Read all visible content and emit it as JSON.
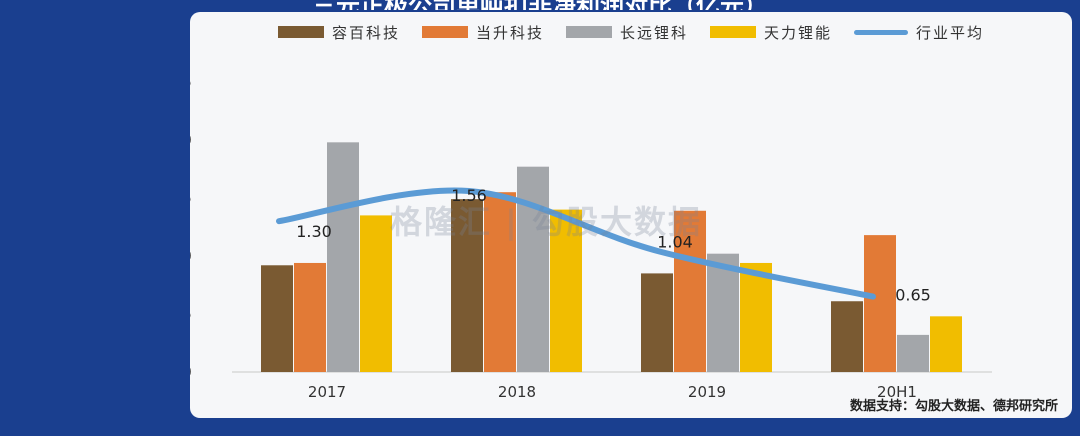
{
  "header": {
    "title": "三元正极公司单吨扣非净利润对比（亿元）"
  },
  "watermark": "格隆汇 | 勾股大数据",
  "source": "数据支持：勾股大数据、德邦研究所",
  "colors": {
    "rongbai": "#7a5a32",
    "dangsheng": "#e27a36",
    "changyuan": "#a3a6aa",
    "tianli": "#f1bd00",
    "average": "#5b9bd5"
  },
  "chart_data": {
    "type": "bar",
    "categories": [
      "2017",
      "2018",
      "2019",
      "20H1"
    ],
    "series": [
      {
        "name": "容百科技",
        "values": [
          0.92,
          1.49,
          0.85,
          0.61
        ]
      },
      {
        "name": "当升科技",
        "values": [
          0.94,
          1.55,
          1.39,
          1.18
        ]
      },
      {
        "name": "长远锂科",
        "values": [
          1.98,
          1.77,
          1.02,
          0.32
        ]
      },
      {
        "name": "天力锂能",
        "values": [
          1.35,
          1.4,
          0.94,
          0.48
        ]
      }
    ],
    "line_series": {
      "name": "行业平均",
      "values": [
        1.3,
        1.56,
        1.04,
        0.65
      ],
      "labels": [
        "1.30",
        "1.56",
        "1.04",
        "0.65"
      ]
    },
    "ylim": [
      0,
      2.5
    ],
    "yticks": [
      "0.0",
      "0.5",
      "1.0",
      "1.5",
      "2.0",
      "2.5"
    ],
    "grid": false,
    "legend": "top"
  }
}
